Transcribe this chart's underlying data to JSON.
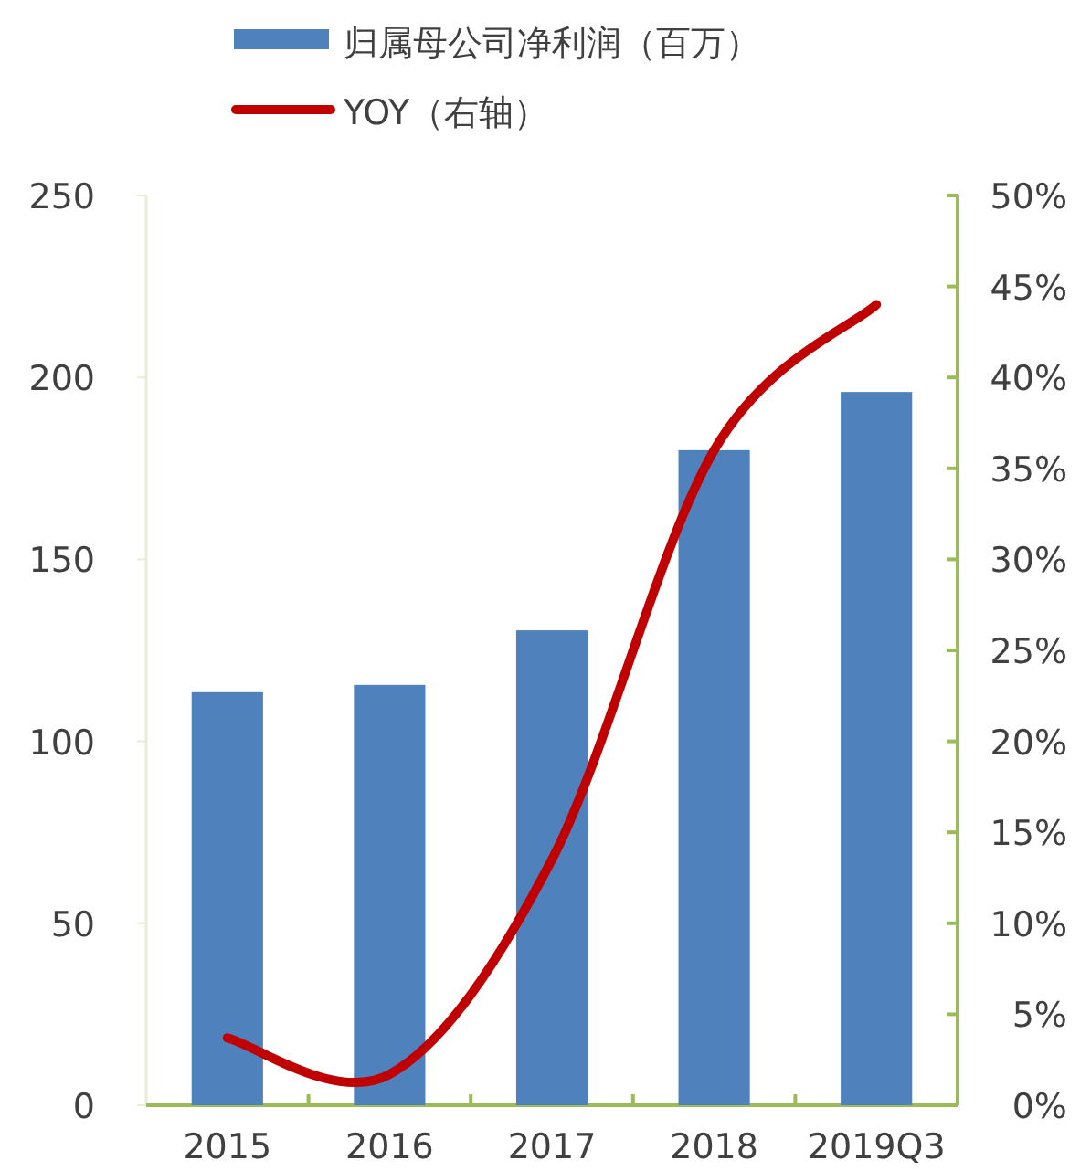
{
  "chart_data": {
    "type": "bar",
    "categories": [
      "2015",
      "2016",
      "2017",
      "2018",
      "2019Q3"
    ],
    "series": [
      {
        "name": "归属母公司净利润（百万）",
        "color": "#4f81bd",
        "values": [
          113.5,
          115.5,
          130.5,
          180,
          196
        ]
      },
      {
        "name": "YOY（右轴）",
        "type": "line",
        "axis": "y2",
        "color": "#c00000",
        "values": [
          3.7,
          1.7,
          13.5,
          36,
          44
        ]
      }
    ],
    "ylim": [
      0,
      250
    ],
    "yticks": [
      0,
      50,
      100,
      150,
      200,
      250
    ],
    "y2lim": [
      0,
      50
    ],
    "y2ticks": [
      {
        "value": 0,
        "label": "0%"
      },
      {
        "value": 5,
        "label": "5%"
      },
      {
        "value": 10,
        "label": "10%"
      },
      {
        "value": 15,
        "label": "15%"
      },
      {
        "value": 20,
        "label": "20%"
      },
      {
        "value": 25,
        "label": "25%"
      },
      {
        "value": 30,
        "label": "30%"
      },
      {
        "value": 35,
        "label": "35%"
      },
      {
        "value": 40,
        "label": "40%"
      },
      {
        "value": 45,
        "label": "45%"
      },
      {
        "value": 50,
        "label": "50%"
      }
    ],
    "grid": false,
    "legend": "top",
    "marker": "none",
    "line_style": "solid"
  }
}
